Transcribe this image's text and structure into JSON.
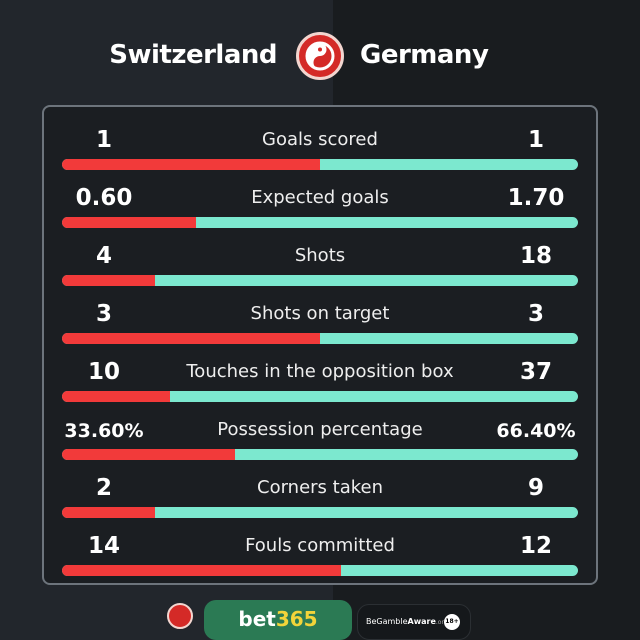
{
  "header": {
    "home": "Switzerland",
    "away": "Germany",
    "logo_icon": "brand-yin-yang-logo"
  },
  "colors": {
    "home_bar": "#f23a3a",
    "away_bar": "#7ce8cf"
  },
  "stats": [
    {
      "label": "Goals scored",
      "home": "1",
      "away": "1",
      "home_share": 0.5
    },
    {
      "label": "Expected goals",
      "home": "0.60",
      "away": "1.70",
      "home_share": 0.26
    },
    {
      "label": "Shots",
      "home": "4",
      "away": "18",
      "home_share": 0.18
    },
    {
      "label": "Shots on target",
      "home": "3",
      "away": "3",
      "home_share": 0.5
    },
    {
      "label": "Touches in the opposition box",
      "home": "10",
      "away": "37",
      "home_share": 0.21
    },
    {
      "label": "Possession percentage",
      "home": "33.60%",
      "away": "66.40%",
      "home_share": 0.336
    },
    {
      "label": "Corners taken",
      "home": "2",
      "away": "9",
      "home_share": 0.18
    },
    {
      "label": "Fouls committed",
      "home": "14",
      "away": "12",
      "home_share": 0.54
    }
  ],
  "footer": {
    "bet_a": "bet",
    "bet_b": "365",
    "gamble_a": "BeGamble",
    "gamble_b": "Aware",
    "gamble_c": ".org",
    "age": "18+"
  }
}
